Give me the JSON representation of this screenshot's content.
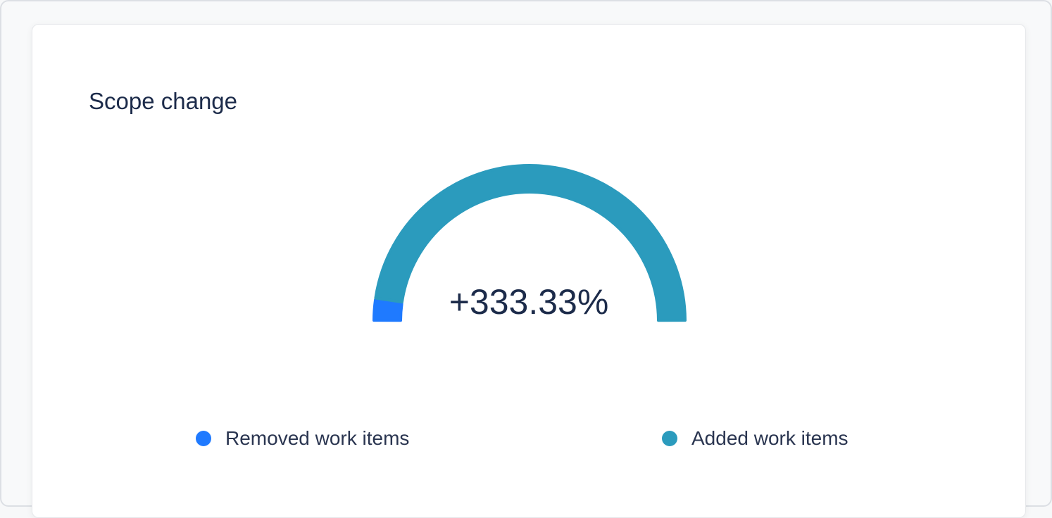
{
  "card": {
    "title": "Scope change"
  },
  "gauge": {
    "value_label": "+333.33%",
    "removed_fraction": 0.045,
    "colors": {
      "removed": "#1f7aff",
      "added": "#2b9bbd"
    }
  },
  "legend": [
    {
      "label": "Removed work items",
      "color": "#1f7aff"
    },
    {
      "label": "Added work items",
      "color": "#2b9bbd"
    }
  ]
}
